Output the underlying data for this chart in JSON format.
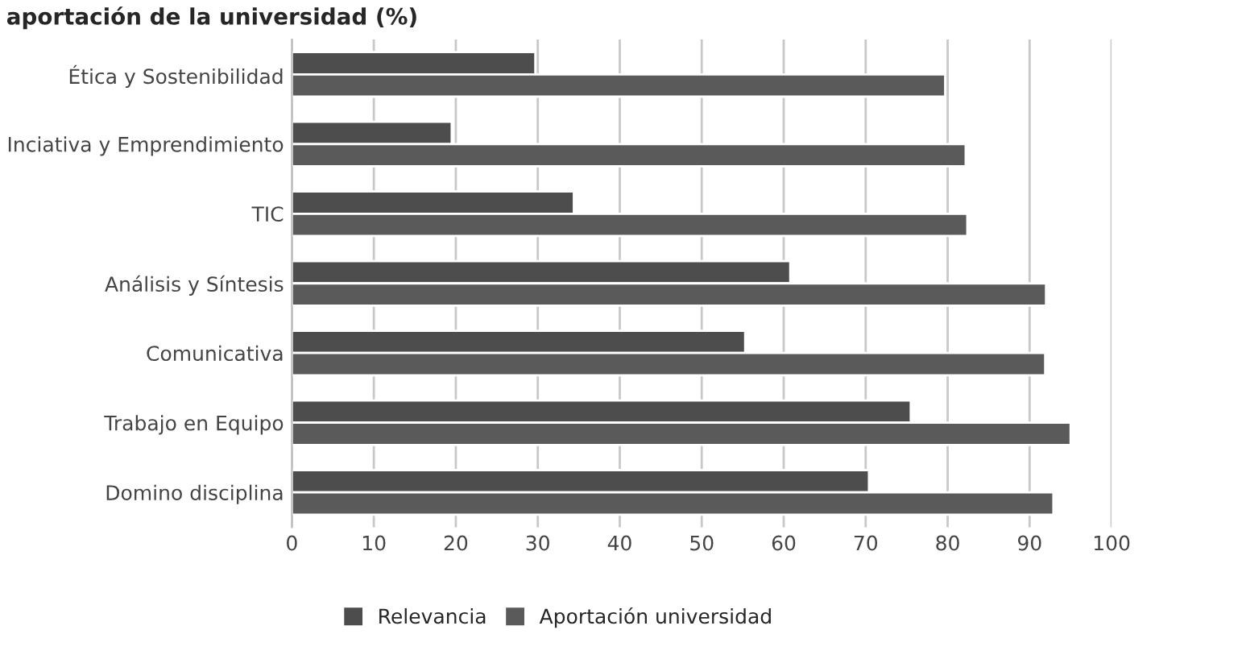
{
  "chart_data": {
    "type": "bar",
    "orientation": "horizontal",
    "title": "aportación de la universidad (%)",
    "categories": [
      "Ética y Sostenibilidad",
      "Inciativa y Emprendimiento",
      "TIC",
      "Análisis y Síntesis",
      "Comunicativa",
      "Trabajo en Equipo",
      "Domino disciplina"
    ],
    "series": [
      {
        "name": "Relevancia",
        "color": "#4d4d4d",
        "values": [
          29.7,
          19.5,
          34.4,
          60.8,
          55.3,
          75.5,
          70.4
        ]
      },
      {
        "name": "Aportación universidad",
        "color": "#5a5a5a",
        "values": [
          79.7,
          82.2,
          82.4,
          92.0,
          91.9,
          95.0,
          92.9
        ]
      }
    ],
    "xlim": [
      0,
      100
    ],
    "xticks": [
      0,
      10,
      20,
      30,
      40,
      50,
      60,
      70,
      80,
      90,
      100
    ],
    "grid": "x",
    "legend": "bottom"
  }
}
